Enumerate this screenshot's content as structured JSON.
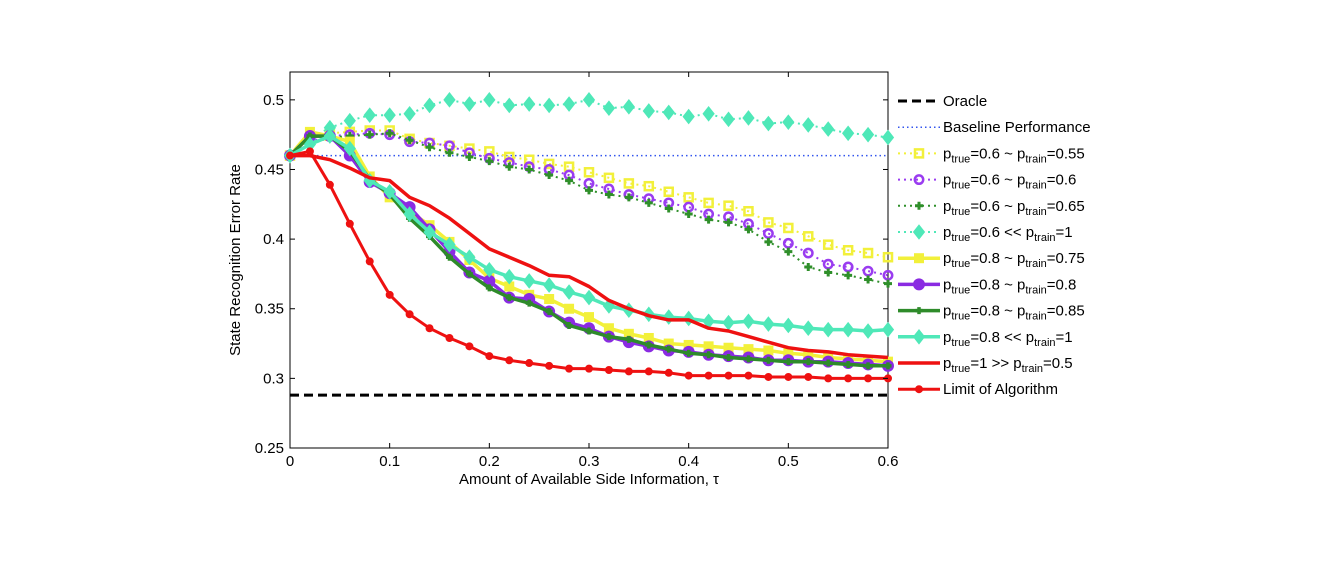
{
  "chart_data": {
    "type": "line",
    "xlabel": "Amount of Available Side Information, τ",
    "ylabel": "State Recognition Error Rate",
    "xlim": [
      0,
      0.6
    ],
    "ylim": [
      0.25,
      0.52
    ],
    "xticks": [
      "0",
      "0.1",
      "0.2",
      "0.3",
      "0.4",
      "0.5",
      "0.6"
    ],
    "xtick_values": [
      0,
      0.1,
      0.2,
      0.3,
      0.4,
      0.5,
      0.6
    ],
    "yticks": [
      "0.25",
      "0.3",
      "0.35",
      "0.4",
      "0.45",
      "0.5"
    ],
    "ytick_values": [
      0.25,
      0.3,
      0.35,
      0.4,
      0.45,
      0.5
    ],
    "grid": false,
    "legend_position": "outside-right",
    "x": [
      0,
      0.02,
      0.04,
      0.06,
      0.08,
      0.1,
      0.12,
      0.14,
      0.16,
      0.18,
      0.2,
      0.22,
      0.24,
      0.26,
      0.28,
      0.3,
      0.32,
      0.34,
      0.36,
      0.38,
      0.4,
      0.42,
      0.44,
      0.46,
      0.48,
      0.5,
      0.52,
      0.54,
      0.56,
      0.58,
      0.6
    ],
    "series": [
      {
        "name": "Oracle",
        "legend": {
          "pre": "Oracle"
        },
        "color": "#000000",
        "width": 3,
        "dash": "9,5",
        "marker": "none",
        "values": [
          0.288,
          0.288,
          0.288,
          0.288,
          0.288,
          0.288,
          0.288,
          0.288,
          0.288,
          0.288,
          0.288,
          0.288,
          0.288,
          0.288,
          0.288,
          0.288,
          0.288,
          0.288,
          0.288,
          0.288,
          0.288,
          0.288,
          0.288,
          0.288,
          0.288,
          0.288,
          0.288,
          0.288,
          0.288,
          0.288,
          0.288
        ]
      },
      {
        "name": "Baseline Performance",
        "legend": {
          "pre": "Baseline Performance"
        },
        "color": "#3355ee",
        "width": 1.5,
        "dash": "1.5,3",
        "marker": "none",
        "values": [
          0.46,
          0.46,
          0.46,
          0.46,
          0.46,
          0.46,
          0.46,
          0.46,
          0.46,
          0.46,
          0.46,
          0.46,
          0.46,
          0.46,
          0.46,
          0.46,
          0.46,
          0.46,
          0.46,
          0.46,
          0.46,
          0.46,
          0.46,
          0.46,
          0.46,
          0.46,
          0.46,
          0.46,
          0.46,
          0.46,
          0.46
        ]
      },
      {
        "name": "ptrue=0.6 ~ ptrain=0.55",
        "legend": {
          "pre": "p",
          "s1": "true",
          "mid": "=0.6 ~ p",
          "s2": "train",
          "post": "=0.55"
        },
        "color": "#f2f03a",
        "width": 2,
        "dash": "2,4",
        "marker": "square-open",
        "values": [
          0.46,
          0.472,
          0.476,
          0.477,
          0.478,
          0.478,
          0.472,
          0.469,
          0.467,
          0.465,
          0.463,
          0.459,
          0.457,
          0.454,
          0.452,
          0.448,
          0.444,
          0.44,
          0.438,
          0.434,
          0.43,
          0.426,
          0.424,
          0.42,
          0.412,
          0.408,
          0.402,
          0.396,
          0.392,
          0.39,
          0.387
        ]
      },
      {
        "name": "ptrue=0.6 ~ ptrain=0.6",
        "legend": {
          "pre": "p",
          "s1": "true",
          "mid": "=0.6 ~ p",
          "s2": "train",
          "post": "=0.6"
        },
        "color": "#9a3cf0",
        "width": 2,
        "dash": "2,4",
        "marker": "circle-open",
        "values": [
          0.46,
          0.47,
          0.474,
          0.475,
          0.476,
          0.475,
          0.47,
          0.469,
          0.467,
          0.462,
          0.458,
          0.455,
          0.452,
          0.45,
          0.446,
          0.44,
          0.436,
          0.432,
          0.429,
          0.426,
          0.423,
          0.418,
          0.416,
          0.411,
          0.404,
          0.397,
          0.39,
          0.382,
          0.38,
          0.377,
          0.374
        ]
      },
      {
        "name": "ptrue=0.6 ~ ptrain=0.65",
        "legend": {
          "pre": "p",
          "s1": "true",
          "mid": "=0.6 ~ p",
          "s2": "train",
          "post": "=0.65"
        },
        "color": "#2f8f2a",
        "width": 2,
        "dash": "2,4",
        "marker": "plus",
        "values": [
          0.46,
          0.468,
          0.473,
          0.474,
          0.475,
          0.476,
          0.471,
          0.466,
          0.462,
          0.459,
          0.456,
          0.452,
          0.45,
          0.446,
          0.442,
          0.435,
          0.432,
          0.43,
          0.426,
          0.422,
          0.418,
          0.414,
          0.412,
          0.407,
          0.398,
          0.391,
          0.38,
          0.376,
          0.374,
          0.371,
          0.368
        ]
      },
      {
        "name": "ptrue=0.6 << ptrain=1",
        "legend": {
          "pre": "p",
          "s1": "true",
          "mid": "=0.6 << p",
          "s2": "train",
          "post": "=1"
        },
        "color": "#4fe8b8",
        "width": 2,
        "dash": "2,4",
        "marker": "diamond",
        "values": [
          0.46,
          0.472,
          0.48,
          0.485,
          0.489,
          0.489,
          0.49,
          0.496,
          0.5,
          0.497,
          0.5,
          0.496,
          0.497,
          0.496,
          0.497,
          0.5,
          0.494,
          0.495,
          0.492,
          0.491,
          0.488,
          0.49,
          0.486,
          0.487,
          0.483,
          0.484,
          0.482,
          0.479,
          0.476,
          0.475,
          0.473
        ]
      },
      {
        "name": "ptrue=0.8 ~ ptrain=0.75",
        "legend": {
          "pre": "p",
          "s1": "true",
          "mid": "=0.8 ~ p",
          "s2": "train",
          "post": "=0.75"
        },
        "color": "#f2f03a",
        "width": 3.5,
        "dash": "",
        "marker": "square",
        "values": [
          0.46,
          0.477,
          0.474,
          0.47,
          0.445,
          0.43,
          0.42,
          0.41,
          0.398,
          0.385,
          0.372,
          0.366,
          0.36,
          0.357,
          0.35,
          0.344,
          0.336,
          0.332,
          0.329,
          0.325,
          0.324,
          0.323,
          0.322,
          0.321,
          0.32,
          0.318,
          0.317,
          0.315,
          0.314,
          0.313,
          0.312
        ]
      },
      {
        "name": "ptrue=0.8 ~ ptrain=0.8",
        "legend": {
          "pre": "p",
          "s1": "true",
          "mid": "=0.8 ~ p",
          "s2": "train",
          "post": "=0.8"
        },
        "color": "#8a2be2",
        "width": 3.5,
        "dash": "",
        "marker": "circle",
        "values": [
          0.46,
          0.474,
          0.474,
          0.46,
          0.441,
          0.433,
          0.423,
          0.407,
          0.391,
          0.376,
          0.37,
          0.358,
          0.357,
          0.348,
          0.34,
          0.336,
          0.33,
          0.326,
          0.323,
          0.32,
          0.319,
          0.317,
          0.316,
          0.315,
          0.313,
          0.313,
          0.312,
          0.312,
          0.311,
          0.31,
          0.309
        ]
      },
      {
        "name": "ptrue=0.8 ~ ptrain=0.85",
        "legend": {
          "pre": "p",
          "s1": "true",
          "mid": "=0.8 ~ p",
          "s2": "train",
          "post": "=0.85"
        },
        "color": "#2e8b2a",
        "width": 3.5,
        "dash": "",
        "marker": "plus-filled",
        "values": [
          0.46,
          0.474,
          0.474,
          0.463,
          0.443,
          0.432,
          0.415,
          0.402,
          0.387,
          0.375,
          0.365,
          0.358,
          0.354,
          0.348,
          0.338,
          0.334,
          0.33,
          0.328,
          0.324,
          0.321,
          0.318,
          0.317,
          0.315,
          0.314,
          0.313,
          0.312,
          0.312,
          0.311,
          0.31,
          0.309,
          0.309
        ]
      },
      {
        "name": "ptrue=0.8 << ptrain=1",
        "legend": {
          "pre": "p",
          "s1": "true",
          "mid": "=0.8 << p",
          "s2": "train",
          "post": "=1"
        },
        "color": "#4fe8b8",
        "width": 3.5,
        "dash": "",
        "marker": "diamond",
        "values": [
          0.46,
          0.468,
          0.474,
          0.465,
          0.442,
          0.434,
          0.418,
          0.405,
          0.396,
          0.387,
          0.378,
          0.373,
          0.37,
          0.367,
          0.362,
          0.358,
          0.352,
          0.349,
          0.346,
          0.344,
          0.343,
          0.341,
          0.34,
          0.341,
          0.339,
          0.338,
          0.336,
          0.335,
          0.335,
          0.334,
          0.335
        ]
      },
      {
        "name": "ptrue=1 >> ptrain=0.5",
        "legend": {
          "pre": "p",
          "s1": "true",
          "mid": "=1 >> p",
          "s2": "train",
          "post": "=0.5"
        },
        "color": "#ee1111",
        "width": 3.5,
        "dash": "",
        "marker": "none",
        "values": [
          0.46,
          0.46,
          0.457,
          0.451,
          0.444,
          0.442,
          0.43,
          0.424,
          0.415,
          0.404,
          0.393,
          0.387,
          0.381,
          0.374,
          0.373,
          0.366,
          0.356,
          0.35,
          0.345,
          0.342,
          0.342,
          0.336,
          0.334,
          0.33,
          0.326,
          0.322,
          0.32,
          0.319,
          0.317,
          0.316,
          0.315
        ]
      },
      {
        "name": "Limit of Algorithm",
        "legend": {
          "pre": "Limit of Algorithm"
        },
        "color": "#ee1111",
        "width": 3,
        "dash": "",
        "marker": "dot",
        "values": [
          0.46,
          0.463,
          0.439,
          0.411,
          0.384,
          0.36,
          0.346,
          0.336,
          0.329,
          0.323,
          0.316,
          0.313,
          0.311,
          0.309,
          0.307,
          0.307,
          0.306,
          0.305,
          0.305,
          0.304,
          0.302,
          0.302,
          0.302,
          0.302,
          0.301,
          0.301,
          0.301,
          0.3,
          0.3,
          0.3,
          0.3
        ]
      }
    ]
  }
}
